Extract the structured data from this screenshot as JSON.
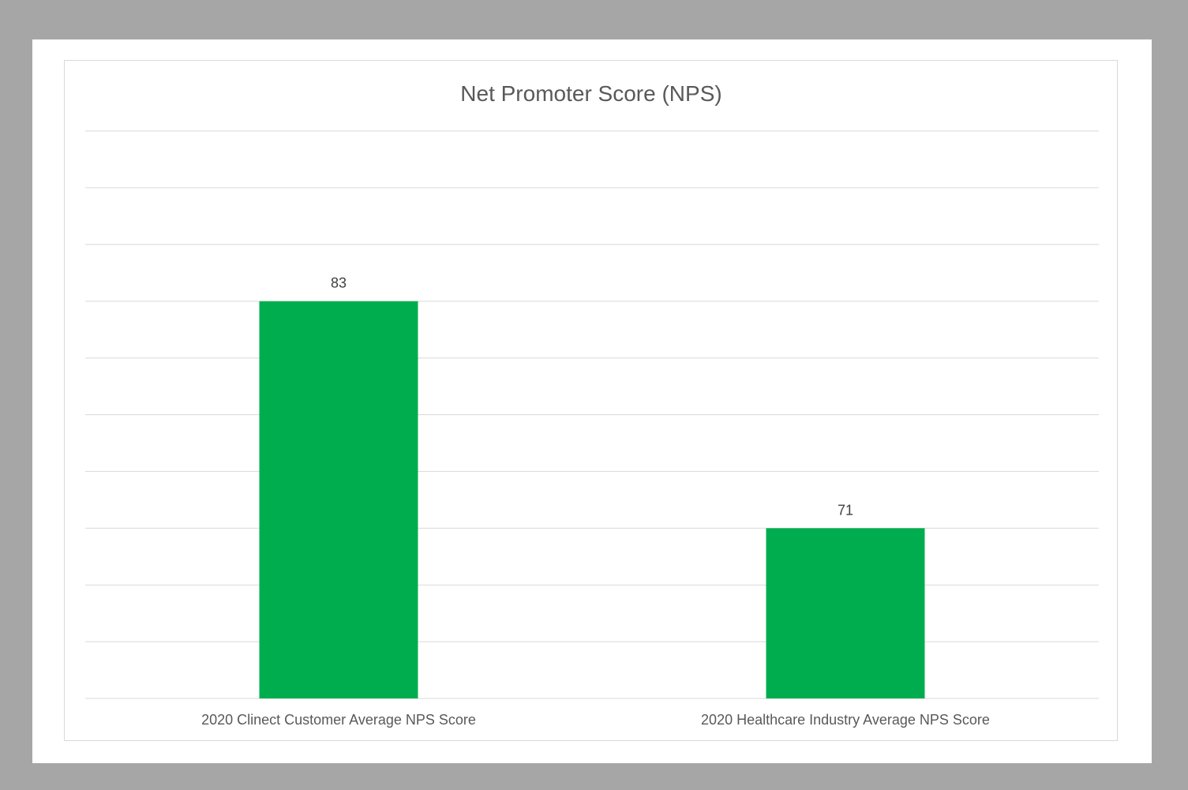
{
  "chart_data": {
    "type": "bar",
    "title": "Net Promoter Score (NPS)",
    "categories": [
      "2020 Clinect Customer Average NPS Score",
      "2020 Healthcare Industry Average NPS Score"
    ],
    "values": [
      83,
      71
    ],
    "data_labels": [
      "83",
      "71"
    ],
    "xlabel": "",
    "ylabel": "",
    "ylim": [
      62,
      92
    ],
    "gridlines": true,
    "legend": "none",
    "bar_color": "#00ad4e",
    "gridline_color": "#d9d9d9",
    "text_color": "#595959"
  }
}
